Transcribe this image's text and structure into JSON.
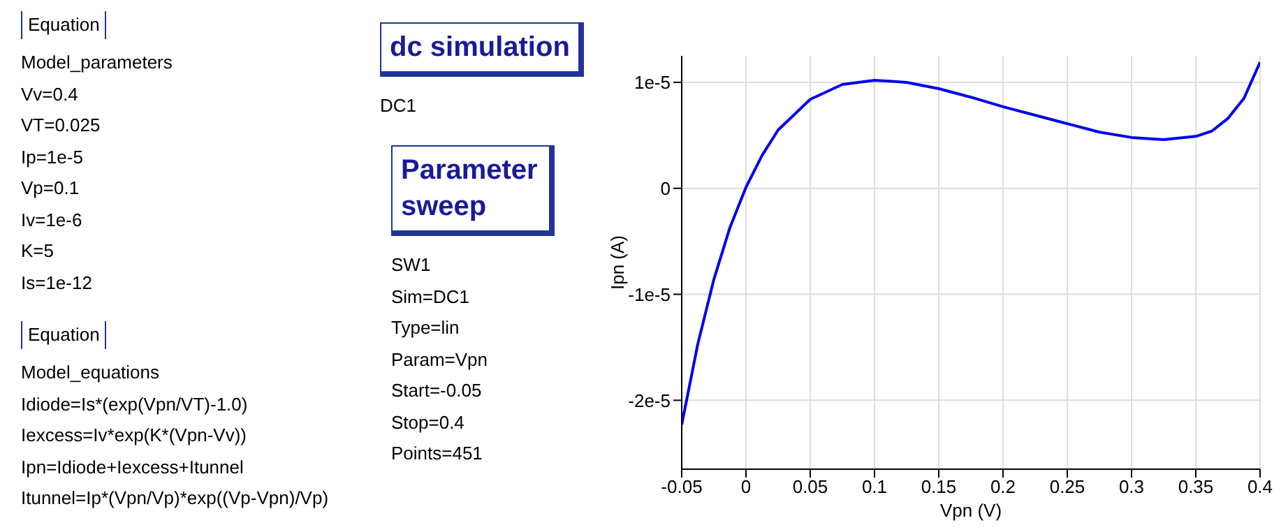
{
  "chart_data": [
    {
      "type": "other",
      "title": "Equation",
      "annotations": [
        "Model_parameters",
        "Vv=0.4",
        "VT=0.025",
        "Ip=1e-5",
        "Vp=0.1",
        "Iv=1e-6",
        "K=5",
        "Is=1e-12"
      ]
    },
    {
      "type": "other",
      "title": "Equation",
      "annotations": [
        "Model_equations",
        "Idiode=Is*(exp(Vpn/VT)-1.0)",
        "Iexcess=Iv*exp(K*(Vpn-Vv))",
        "Ipn=Idiode+Iexcess+Itunnel",
        "Itunnel=Ip*(Vpn/Vp)*exp((Vp-Vpn)/Vp)"
      ]
    },
    {
      "type": "other",
      "title": "dc simulation",
      "annotations": [
        "DC1"
      ]
    },
    {
      "type": "other",
      "title": "Parameter sweep",
      "annotations": [
        "SW1",
        "Sim=DC1",
        "Type=lin",
        "Param=Vpn",
        "Start=-0.05",
        "Stop=0.4",
        "Points=451"
      ]
    },
    {
      "type": "line",
      "xlabel": "Vpn (V)",
      "ylabel": "Ipn (A)",
      "grid": true,
      "x": [
        -0.05,
        -0.0375,
        -0.025,
        -0.0125,
        0,
        0.0125,
        0.025,
        0.05,
        0.075,
        0.1,
        0.125,
        0.15,
        0.175,
        0.2,
        0.225,
        0.25,
        0.275,
        0.3,
        0.325,
        0.35,
        0.3625,
        0.375,
        0.3875,
        0.4
      ],
      "series": [
        {
          "color": "#0000ee",
          "values": [
            -2.23e-05,
            -1.47e-05,
            -8.6e-06,
            -3.7e-06,
            1e-07,
            3.1e-06,
            5.5e-06,
            8.4e-06,
            9.8e-06,
            1.02e-05,
            1e-05,
            9.4e-06,
            8.6e-06,
            7.7e-06,
            6.9e-06,
            6.1e-06,
            5.3e-06,
            4.8e-06,
            4.6e-06,
            4.9e-06,
            5.4e-06,
            6.6e-06,
            8.5e-06,
            1.19e-05
          ]
        }
      ],
      "xlim": [
        -0.05,
        0.4
      ],
      "xticks": [
        -0.05,
        0,
        0.05,
        0.1,
        0.15,
        0.2,
        0.25,
        0.3,
        0.35,
        0.4
      ],
      "ylim": [
        -2.65e-05,
        1.25e-05
      ],
      "yticks": [
        {
          "value": -2e-05,
          "label": "-2e-5"
        },
        {
          "value": -1e-05,
          "label": "-1e-5"
        },
        0,
        {
          "value": 1e-05,
          "label": "1e-5"
        }
      ]
    }
  ]
}
